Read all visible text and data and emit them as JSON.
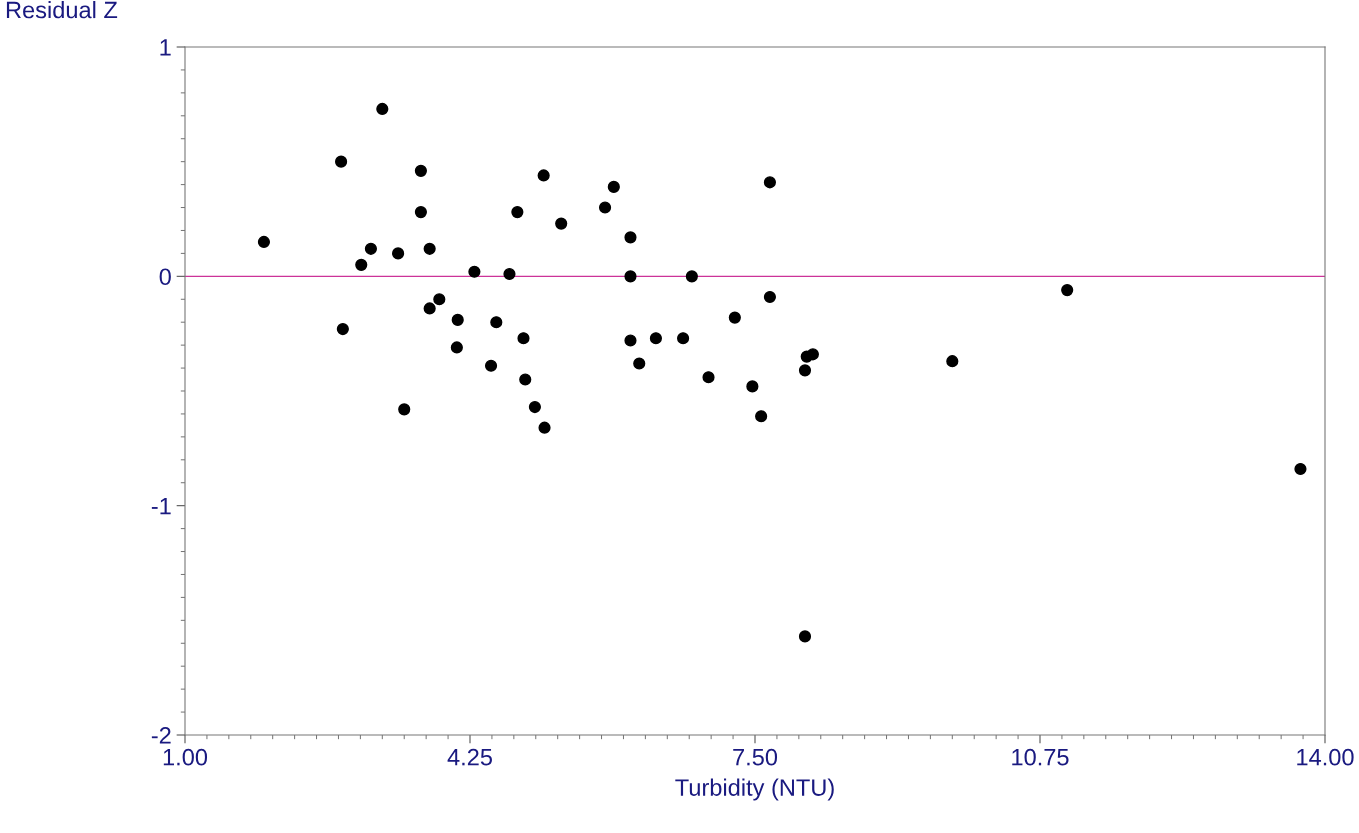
{
  "chart_data": {
    "type": "scatter",
    "xlabel": "Turbidity (NTU)",
    "ylabel": "Residual Z",
    "x": [
      1.9,
      2.78,
      2.8,
      3.01,
      3.12,
      3.25,
      3.43,
      3.5,
      3.69,
      3.69,
      3.79,
      3.79,
      3.9,
      4.11,
      4.1,
      4.3,
      4.49,
      4.55,
      4.7,
      4.79,
      4.86,
      4.88,
      4.99,
      5.09,
      5.1,
      5.29,
      5.79,
      5.89,
      6.08,
      6.08,
      6.08,
      6.18,
      6.37,
      6.68,
      6.78,
      6.97,
      7.27,
      7.47,
      7.57,
      7.67,
      7.67,
      8.07,
      8.09,
      8.16,
      8.07,
      9.75,
      11.06,
      13.72
    ],
    "series": [
      {
        "color": "#000000",
        "values": [
          0.15,
          0.5,
          -0.23,
          0.05,
          0.12,
          0.73,
          0.1,
          -0.58,
          0.46,
          0.28,
          0.12,
          -0.14,
          -0.1,
          -0.19,
          -0.31,
          0.02,
          -0.39,
          -0.2,
          0.01,
          0.28,
          -0.27,
          -0.45,
          -0.57,
          0.44,
          -0.66,
          0.23,
          0.3,
          0.39,
          0.17,
          0.0,
          -0.28,
          -0.38,
          -0.27,
          -0.27,
          0.0,
          -0.44,
          -0.18,
          -0.48,
          -0.61,
          0.41,
          -0.09,
          -0.41,
          -0.35,
          -0.34,
          -1.57,
          -0.37,
          -0.06,
          -0.84
        ]
      }
    ],
    "xlim": [
      1.0,
      14.0
    ],
    "xticks": [
      {
        "value": 1.0,
        "label": "1.00"
      },
      {
        "value": 4.25,
        "label": "4.25"
      },
      {
        "value": 7.5,
        "label": "7.50"
      },
      {
        "value": 10.75,
        "label": "10.75"
      },
      {
        "value": 14.0,
        "label": "14.00"
      }
    ],
    "ylim": [
      -2,
      1
    ],
    "yticks": [
      -2,
      -1,
      0,
      1
    ],
    "ref_lines": [
      {
        "axis": "y",
        "value": 0,
        "color": "#cc3399"
      }
    ],
    "marker": "circle",
    "grid": false,
    "legend": false
  }
}
